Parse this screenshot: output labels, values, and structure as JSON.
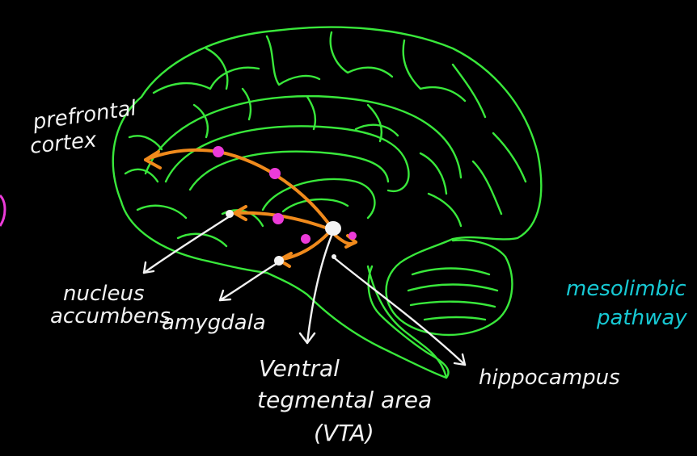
{
  "colors": {
    "background": "#000000",
    "brain_outline": "#39e83b",
    "pathway_arrow": "#f08a1c",
    "synapse_dot": "#ec3bd9",
    "pointer_line": "#f2f2f2",
    "label_text": "#f2f2f2",
    "pathway_title": "#17c9d4"
  },
  "labels": {
    "prefrontal_line1": "prefrontal",
    "prefrontal_line2": "cortex",
    "nucleus_line1": "nucleus",
    "nucleus_line2": "accumbens",
    "amygdala": "amygdala",
    "vta_line1": "Ventral",
    "vta_line2": "tegmental area",
    "vta_line3": "(VTA)",
    "hippocampus": "hippocampus",
    "pathway_line1": "mesolimbic",
    "pathway_line2": "pathway"
  }
}
